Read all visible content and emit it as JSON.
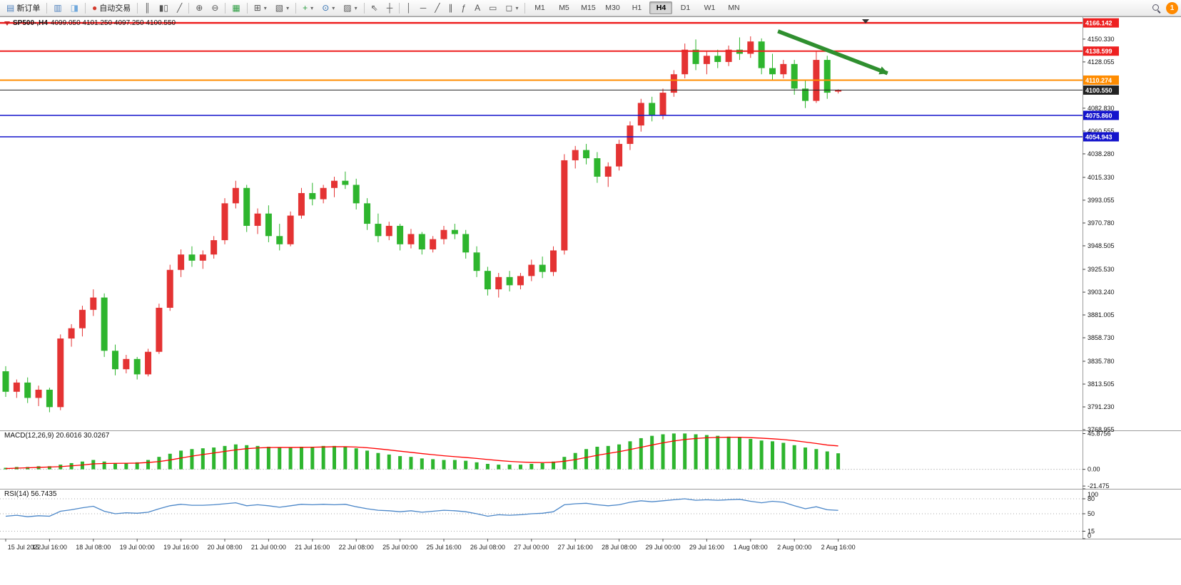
{
  "toolbar": {
    "timeframes": [
      "M1",
      "M5",
      "M15",
      "M30",
      "H1",
      "H4",
      "D1",
      "W1",
      "MN"
    ],
    "active_timeframe": "H4",
    "badge_count": "1",
    "dropdown_caret": "▾",
    "groups": [
      {
        "items": [
          {
            "kind": "button",
            "name": "new-order-button",
            "glyph": "▤",
            "glyph_color": "#4f81bd",
            "label": "新订单"
          }
        ]
      },
      {
        "items": [
          {
            "kind": "icon",
            "name": "market-watch-icon",
            "glyph": "▥",
            "glyph_color": "#4f81bd"
          },
          {
            "kind": "icon",
            "name": "navigator-icon",
            "glyph": "◨",
            "glyph_color": "#6fa8dc"
          }
        ]
      },
      {
        "items": [
          {
            "kind": "button",
            "name": "autotrading-button",
            "glyph": "●",
            "glyph_color": "#d33a2c",
            "label": "自动交易"
          }
        ]
      },
      {
        "items": [
          {
            "kind": "icon",
            "name": "bar-chart-icon",
            "glyph": "║"
          },
          {
            "kind": "icon",
            "name": "candlestick-chart-icon",
            "glyph": "▮▯"
          },
          {
            "kind": "icon",
            "name": "line-chart-icon",
            "glyph": "╱"
          }
        ]
      },
      {
        "items": [
          {
            "kind": "icon",
            "name": "zoom-in-icon",
            "glyph": "⊕"
          },
          {
            "kind": "icon",
            "name": "zoom-out-icon",
            "glyph": "⊖"
          }
        ]
      },
      {
        "items": [
          {
            "kind": "icon",
            "name": "grid-icon",
            "glyph": "▦",
            "glyph_color": "#2f9e44"
          }
        ]
      },
      {
        "items": [
          {
            "kind": "icon",
            "name": "new-chart-icon",
            "glyph": "⊞",
            "dropdown": true
          },
          {
            "kind": "icon",
            "name": "profiles-icon",
            "glyph": "▧",
            "dropdown": true
          }
        ]
      },
      {
        "items": [
          {
            "kind": "icon",
            "name": "indicators-icon",
            "glyph": "+",
            "glyph_color": "#2f9e44",
            "dropdown": true
          },
          {
            "kind": "icon",
            "name": "periods-icon",
            "glyph": "⊙",
            "glyph_color": "#2b6cb0",
            "dropdown": true
          },
          {
            "kind": "icon",
            "name": "templates-icon",
            "glyph": "▨",
            "dropdown": true
          }
        ]
      },
      {
        "items": [
          {
            "kind": "icon",
            "name": "cursor-icon",
            "glyph": "⇖"
          },
          {
            "kind": "icon",
            "name": "crosshair-icon",
            "glyph": "┼"
          }
        ]
      },
      {
        "items": [
          {
            "kind": "icon",
            "name": "vertical-line-icon",
            "glyph": "│"
          },
          {
            "kind": "icon",
            "name": "horizontal-line-icon",
            "glyph": "─"
          },
          {
            "kind": "icon",
            "name": "trendline-icon",
            "glyph": "╱"
          },
          {
            "kind": "icon",
            "name": "equidistant-channel-icon",
            "glyph": "∥"
          },
          {
            "kind": "icon",
            "name": "fibonacci-icon",
            "glyph": "ƒ"
          },
          {
            "kind": "icon",
            "name": "text-icon",
            "glyph": "A"
          },
          {
            "kind": "icon",
            "name": "label-icon",
            "glyph": "▭"
          },
          {
            "kind": "icon",
            "name": "shapes-icon",
            "glyph": "◻",
            "dropdown": true
          }
        ]
      },
      {
        "items": [
          {
            "kind": "timeframes"
          }
        ]
      },
      {
        "right": true,
        "items": [
          {
            "kind": "search",
            "name": "search-icon"
          },
          {
            "kind": "badge",
            "name": "notification-badge"
          }
        ]
      }
    ]
  },
  "chart": {
    "header": {
      "title": "SP500-,H4",
      "ohlc": "4099.050 4101.250 4097.250 4100.550"
    },
    "colors": {
      "bull": "#e43333",
      "bear": "#2eb52e",
      "macd_bar": "#2eb52e",
      "macd_signal": "#ff0000",
      "rsi": "#4a86c8",
      "background": "#ffffff"
    }
  },
  "indicators": {
    "macd_label": "MACD(12,26,9) 20.6016 30.0267",
    "rsi_label": "RSI(14) 56.7435"
  },
  "chart_data": {
    "type": "candlestick",
    "symbol": "SP500-",
    "timeframe": "H4",
    "last_ohlc": {
      "open": 4099.05,
      "high": 4101.25,
      "low": 4097.25,
      "close": 4100.55
    },
    "candles": [
      [
        3826,
        3831,
        3801,
        3806
      ],
      [
        3806,
        3818,
        3800,
        3815
      ],
      [
        3815,
        3820,
        3795,
        3800
      ],
      [
        3800,
        3812,
        3792,
        3808
      ],
      [
        3808,
        3810,
        3786,
        3791
      ],
      [
        3791,
        3862,
        3788,
        3858
      ],
      [
        3858,
        3872,
        3850,
        3868
      ],
      [
        3868,
        3890,
        3860,
        3886
      ],
      [
        3886,
        3906,
        3880,
        3898
      ],
      [
        3898,
        3902,
        3840,
        3846
      ],
      [
        3846,
        3852,
        3822,
        3828
      ],
      [
        3828,
        3842,
        3824,
        3838
      ],
      [
        3838,
        3840,
        3818,
        3823
      ],
      [
        3823,
        3848,
        3821,
        3845
      ],
      [
        3845,
        3892,
        3843,
        3888
      ],
      [
        3888,
        3930,
        3885,
        3925
      ],
      [
        3925,
        3945,
        3918,
        3940
      ],
      [
        3940,
        3948,
        3928,
        3934
      ],
      [
        3934,
        3944,
        3926,
        3940
      ],
      [
        3940,
        3958,
        3936,
        3954
      ],
      [
        3954,
        3995,
        3950,
        3990
      ],
      [
        3990,
        4012,
        3985,
        4005
      ],
      [
        4005,
        4008,
        3962,
        3968
      ],
      [
        3968,
        3985,
        3960,
        3980
      ],
      [
        3980,
        3988,
        3952,
        3958
      ],
      [
        3958,
        3970,
        3944,
        3950
      ],
      [
        3950,
        3982,
        3948,
        3978
      ],
      [
        3978,
        4005,
        3975,
        4000
      ],
      [
        4000,
        4010,
        3988,
        3994
      ],
      [
        3994,
        4008,
        3990,
        4005
      ],
      [
        4005,
        4016,
        3996,
        4012
      ],
      [
        4012,
        4021,
        4004,
        4008
      ],
      [
        4008,
        4014,
        3984,
        3990
      ],
      [
        3990,
        3995,
        3964,
        3970
      ],
      [
        3970,
        3980,
        3952,
        3958
      ],
      [
        3958,
        3972,
        3954,
        3968
      ],
      [
        3968,
        3970,
        3944,
        3950
      ],
      [
        3950,
        3965,
        3946,
        3960
      ],
      [
        3960,
        3962,
        3940,
        3945
      ],
      [
        3945,
        3958,
        3942,
        3955
      ],
      [
        3955,
        3968,
        3950,
        3964
      ],
      [
        3964,
        3970,
        3955,
        3960
      ],
      [
        3960,
        3964,
        3936,
        3942
      ],
      [
        3942,
        3948,
        3918,
        3924
      ],
      [
        3924,
        3928,
        3900,
        3906
      ],
      [
        3906,
        3922,
        3898,
        3918
      ],
      [
        3918,
        3924,
        3904,
        3910
      ],
      [
        3910,
        3922,
        3906,
        3919
      ],
      [
        3919,
        3935,
        3914,
        3930
      ],
      [
        3930,
        3938,
        3917,
        3923
      ],
      [
        3923,
        3948,
        3919,
        3944
      ],
      [
        3944,
        4038,
        3940,
        4032
      ],
      [
        4032,
        4046,
        4024,
        4042
      ],
      [
        4042,
        4048,
        4028,
        4034
      ],
      [
        4034,
        4040,
        4010,
        4016
      ],
      [
        4016,
        4030,
        4006,
        4026
      ],
      [
        4026,
        4052,
        4022,
        4048
      ],
      [
        4048,
        4070,
        4042,
        4066
      ],
      [
        4066,
        4092,
        4060,
        4088
      ],
      [
        4088,
        4094,
        4070,
        4076
      ],
      [
        4076,
        4102,
        4072,
        4098
      ],
      [
        4098,
        4120,
        4094,
        4116
      ],
      [
        4116,
        4146,
        4112,
        4140
      ],
      [
        4140,
        4150,
        4120,
        4126
      ],
      [
        4126,
        4138,
        4116,
        4134
      ],
      [
        4134,
        4140,
        4122,
        4128
      ],
      [
        4128,
        4144,
        4124,
        4140
      ],
      [
        4140,
        4152,
        4130,
        4136
      ],
      [
        4136,
        4153,
        4132,
        4148
      ],
      [
        4148,
        4151,
        4116,
        4122
      ],
      [
        4122,
        4136,
        4110,
        4116
      ],
      [
        4116,
        4130,
        4112,
        4126
      ],
      [
        4126,
        4130,
        4096,
        4102
      ],
      [
        4102,
        4110,
        4083,
        4090
      ],
      [
        4090,
        4138,
        4088,
        4130
      ],
      [
        4130,
        4134,
        4092,
        4098
      ],
      [
        4099.05,
        4101.25,
        4097.25,
        4100.55
      ]
    ],
    "hlines": [
      {
        "price": 4166.142,
        "label": "4166.142",
        "color": "#ee2020",
        "width": 2.5
      },
      {
        "price": 4138.599,
        "label": "4138.599",
        "color": "#ee2020",
        "width": 2
      },
      {
        "price": 4110.274,
        "label": "4110.274",
        "color": "#ff8c00",
        "width": 2
      },
      {
        "price": 4100.55,
        "label": "4100.550",
        "color": "#222222",
        "width": 1,
        "role": "current-price"
      },
      {
        "price": 4075.86,
        "label": "4075.860",
        "color": "#1414cc",
        "width": 1.5
      },
      {
        "price": 4054.943,
        "label": "4054.943",
        "color": "#1414cc",
        "width": 1.5
      }
    ],
    "price_ticks": [
      "4150.330",
      "4128.055",
      "4082.830",
      "4060.555",
      "4038.280",
      "4015.330",
      "3993.055",
      "3970.780",
      "3948.505",
      "3925.530",
      "3903.240",
      "3881.005",
      "3858.730",
      "3835.780",
      "3813.505",
      "3791.230",
      "3768.955"
    ],
    "time_labels": [
      {
        "index": 0,
        "text": "15 Jul 2022"
      },
      {
        "index": 4,
        "text": "15 Jul 16:00"
      },
      {
        "index": 8,
        "text": "18 Jul 08:00"
      },
      {
        "index": 12,
        "text": "19 Jul 00:00"
      },
      {
        "index": 16,
        "text": "19 Jul 16:00"
      },
      {
        "index": 20,
        "text": "20 Jul 08:00"
      },
      {
        "index": 24,
        "text": "21 Jul 00:00"
      },
      {
        "index": 28,
        "text": "21 Jul 16:00"
      },
      {
        "index": 32,
        "text": "22 Jul 08:00"
      },
      {
        "index": 36,
        "text": "25 Jul 00:00"
      },
      {
        "index": 40,
        "text": "25 Jul 16:00"
      },
      {
        "index": 44,
        "text": "26 Jul 08:00"
      },
      {
        "index": 48,
        "text": "27 Jul 00:00"
      },
      {
        "index": 52,
        "text": "27 Jul 16:00"
      },
      {
        "index": 56,
        "text": "28 Jul 08:00"
      },
      {
        "index": 60,
        "text": "29 Jul 00:00"
      },
      {
        "index": 64,
        "text": "29 Jul 16:00"
      },
      {
        "index": 68,
        "text": "1 Aug 08:00"
      },
      {
        "index": 72,
        "text": "2 Aug 00:00"
      },
      {
        "index": 76,
        "text": "2 Aug 16:00"
      }
    ],
    "macd": {
      "params": "12,26,9",
      "main_value": 20.6016,
      "signal_value": 30.0267,
      "histogram": [
        2,
        3,
        3,
        4,
        4,
        6,
        8,
        10,
        12,
        10,
        8,
        8,
        9,
        12,
        16,
        20,
        24,
        26,
        27,
        28,
        30,
        32,
        31,
        30,
        29,
        28,
        28,
        29,
        29,
        30,
        30,
        29,
        27,
        24,
        21,
        19,
        17,
        16,
        14,
        13,
        12,
        12,
        11,
        9,
        7,
        6,
        6,
        6,
        7,
        8,
        10,
        16,
        21,
        26,
        29,
        30,
        32,
        36,
        40,
        43,
        45,
        46,
        46,
        45,
        44,
        43,
        42,
        41,
        39,
        37,
        36,
        34,
        31,
        28,
        26,
        23,
        20.6
      ],
      "signal": [
        1,
        1.5,
        2,
        2.5,
        3,
        3.5,
        4.5,
        5.5,
        7,
        7.5,
        7.7,
        7.8,
        8,
        8.8,
        10,
        12,
        14.5,
        17,
        19,
        21,
        23,
        25,
        26.5,
        27.5,
        28,
        28.1,
        28.1,
        28.2,
        28.4,
        28.7,
        29,
        29,
        28.6,
        27.7,
        26.4,
        24.9,
        23.3,
        21.8,
        20.2,
        18.8,
        17.4,
        16.3,
        15.2,
        14,
        12.6,
        11.3,
        10.2,
        9.4,
        8.9,
        8.7,
        9,
        10.4,
        12.5,
        15.2,
        18,
        20.4,
        22.7,
        25.4,
        28.3,
        31.2,
        34,
        36.4,
        38.3,
        39.6,
        40.5,
        41,
        41.2,
        41.2,
        40.7,
        40,
        39.2,
        38.2,
        36.8,
        35,
        33.2,
        31.2,
        30.03
      ],
      "scale_ticks": [
        "45.8756",
        "0.00",
        "-21.475"
      ]
    },
    "rsi": {
      "period": 14,
      "value": 56.7435,
      "values": [
        45,
        47,
        44,
        46,
        45,
        55,
        58,
        62,
        65,
        55,
        50,
        52,
        51,
        53,
        60,
        66,
        69,
        67,
        67,
        68,
        70,
        72,
        66,
        68,
        66,
        63,
        66,
        69,
        68,
        69,
        68,
        69,
        64,
        60,
        57,
        56,
        54,
        56,
        53,
        55,
        57,
        56,
        54,
        50,
        45,
        48,
        47,
        48,
        50,
        51,
        54,
        68,
        70,
        71,
        68,
        66,
        68,
        73,
        76,
        74,
        76,
        78,
        80,
        77,
        78,
        77,
        78,
        79,
        75,
        72,
        75,
        73,
        66,
        60,
        64,
        58,
        56.74
      ],
      "levels": [
        80,
        50,
        15
      ],
      "scale_ticks": [
        "100",
        "80",
        "50",
        "15",
        "0"
      ]
    },
    "annotation_arrow": {
      "x1_index": 70.5,
      "y1_price": 4158,
      "x2_index": 80.5,
      "y2_price": 4117,
      "color": "#2f8f2f"
    }
  }
}
